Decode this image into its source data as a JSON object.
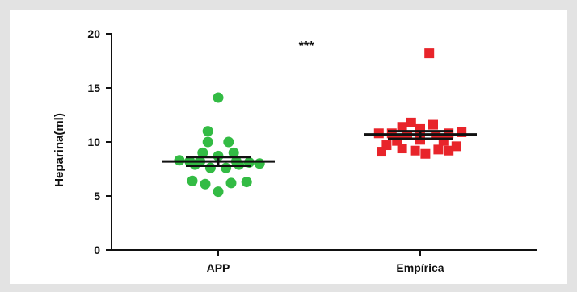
{
  "chart_data": {
    "type": "scatter",
    "title": "",
    "xlabel": "",
    "ylabel": "Heparina(ml)",
    "ylim": [
      0,
      20
    ],
    "yticks": [
      0,
      5,
      10,
      15,
      20
    ],
    "categories": [
      "APP",
      "Empírica"
    ],
    "annotation": "***",
    "grid": false,
    "series": [
      {
        "category": "APP",
        "color": "#33bb44",
        "marker": "circle",
        "mean": 8.2,
        "sem_low": 7.8,
        "sem_high": 8.6,
        "points": [
          {
            "x": 0.0,
            "y": 14.1
          },
          {
            "x": -0.08,
            "y": 11.0
          },
          {
            "x": -0.08,
            "y": 10.0
          },
          {
            "x": 0.08,
            "y": 10.0
          },
          {
            "x": 0.12,
            "y": 9.0
          },
          {
            "x": -0.12,
            "y": 9.0
          },
          {
            "x": 0.0,
            "y": 8.7
          },
          {
            "x": -0.3,
            "y": 8.3
          },
          {
            "x": -0.22,
            "y": 8.2
          },
          {
            "x": -0.14,
            "y": 8.2
          },
          {
            "x": 0.14,
            "y": 8.2
          },
          {
            "x": 0.24,
            "y": 8.1
          },
          {
            "x": 0.32,
            "y": 8.0
          },
          {
            "x": -0.18,
            "y": 7.9
          },
          {
            "x": 0.16,
            "y": 7.9
          },
          {
            "x": -0.06,
            "y": 7.6
          },
          {
            "x": 0.06,
            "y": 7.6
          },
          {
            "x": -0.2,
            "y": 6.4
          },
          {
            "x": -0.1,
            "y": 6.1
          },
          {
            "x": 0.1,
            "y": 6.2
          },
          {
            "x": 0.22,
            "y": 6.3
          },
          {
            "x": 0.0,
            "y": 5.4
          }
        ]
      },
      {
        "category": "Empírica",
        "color": "#e8242a",
        "marker": "square",
        "mean": 10.7,
        "sem_low": 10.3,
        "sem_high": 11.0,
        "points": [
          {
            "x": 0.07,
            "y": 18.2
          },
          {
            "x": -0.07,
            "y": 11.8
          },
          {
            "x": 0.1,
            "y": 11.6
          },
          {
            "x": -0.14,
            "y": 11.4
          },
          {
            "x": 0.0,
            "y": 11.2
          },
          {
            "x": -0.32,
            "y": 10.8
          },
          {
            "x": -0.22,
            "y": 10.8
          },
          {
            "x": 0.22,
            "y": 10.8
          },
          {
            "x": 0.32,
            "y": 10.9
          },
          {
            "x": -0.1,
            "y": 10.6
          },
          {
            "x": 0.12,
            "y": 10.6
          },
          {
            "x": -0.18,
            "y": 10.1
          },
          {
            "x": 0.18,
            "y": 10.1
          },
          {
            "x": 0.0,
            "y": 10.2
          },
          {
            "x": -0.26,
            "y": 9.7
          },
          {
            "x": 0.28,
            "y": 9.6
          },
          {
            "x": -0.14,
            "y": 9.4
          },
          {
            "x": 0.14,
            "y": 9.3
          },
          {
            "x": -0.04,
            "y": 9.2
          },
          {
            "x": 0.22,
            "y": 9.2
          },
          {
            "x": 0.04,
            "y": 8.9
          },
          {
            "x": -0.3,
            "y": 9.1
          }
        ]
      }
    ]
  }
}
